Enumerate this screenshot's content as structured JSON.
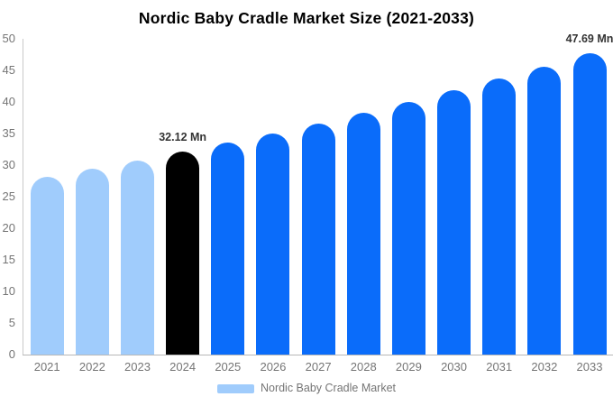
{
  "title": "Nordic Baby Cradle Market Size (2021-2033)",
  "chart_data": {
    "type": "bar",
    "title": "Nordic Baby Cradle Market Size (2021-2033)",
    "categories": [
      "2021",
      "2022",
      "2023",
      "2024",
      "2025",
      "2026",
      "2027",
      "2028",
      "2029",
      "2030",
      "2031",
      "2032",
      "2033"
    ],
    "values": [
      28.15,
      29.42,
      30.74,
      32.12,
      33.56,
      35.07,
      36.64,
      38.29,
      40.01,
      41.8,
      43.68,
      45.64,
      47.69
    ],
    "unit": "Mn",
    "bar_colors": [
      "#A0CCFC",
      "#A0CCFC",
      "#A0CCFC",
      "#000000",
      "#0A6CFA",
      "#0A6CFA",
      "#0A6CFA",
      "#0A6CFA",
      "#0A6CFA",
      "#0A6CFA",
      "#0A6CFA",
      "#0A6CFA",
      "#0A6CFA"
    ],
    "data_labels": [
      {
        "category": "2024",
        "text": "32.12 Mn"
      },
      {
        "category": "2033",
        "text": "47.69 Mn"
      }
    ],
    "xlabel": "",
    "ylabel": "",
    "ylim": [
      0,
      50
    ],
    "ytick_step": 5,
    "grid": false,
    "legend_position": "bottom",
    "legend": [
      {
        "label": "Nordic Baby Cradle Market",
        "color": "#A0CCFC"
      }
    ],
    "colors": {
      "historical": "#A0CCFC",
      "base_year": "#000000",
      "forecast": "#0A6CFA",
      "axis_line": "#C9C9C9",
      "tick_text": "#757575",
      "title_text": "#000000",
      "label_text": "#333333"
    }
  }
}
